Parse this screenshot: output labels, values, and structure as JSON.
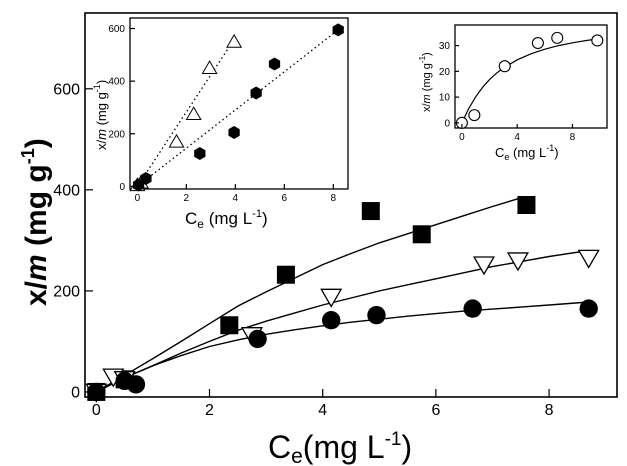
{
  "chart_data": [
    {
      "panel": "main",
      "type": "scatter",
      "xlabel": "Ce (mg L-1)",
      "xlabel_main": "C",
      "xlabel_sub": "e",
      "xlabel_unit": "(mg L",
      "xlabel_sup": "-1",
      "xlabel_close": ")",
      "ylabel": "x/m (mg g-1)",
      "ylabel_main": "x/",
      "ylabel_italic": "m",
      "ylabel_unit": " (mg g",
      "ylabel_sup": "-1",
      "ylabel_close": ")",
      "xlim": [
        -0.2,
        9.2
      ],
      "ylim": [
        -10,
        750
      ],
      "xticks": [
        "0",
        "2",
        "4",
        "6",
        "8"
      ],
      "yticks": [
        "0",
        "200",
        "400",
        "600"
      ],
      "xtick_values": [
        0,
        2,
        4,
        6,
        8
      ],
      "ytick_values": [
        0,
        200,
        400,
        600
      ],
      "grid": false,
      "series": [
        {
          "marker": "filled-square",
          "x": [
            0.0,
            0.5,
            2.35,
            3.35,
            4.85,
            5.75,
            7.6
          ],
          "y": [
            0,
            25,
            132,
            232,
            358,
            312,
            370
          ],
          "fit_x": [
            0.0,
            0.5,
            1.0,
            1.5,
            2.0,
            2.5,
            3.0,
            3.5,
            4.0,
            4.5,
            5.0,
            5.5,
            6.0,
            6.5,
            7.0,
            7.5
          ],
          "fit_y": [
            0,
            33,
            66,
            100,
            135,
            170,
            198,
            225,
            252,
            274,
            295,
            313,
            331,
            349,
            367,
            384
          ]
        },
        {
          "marker": "open-triangle-down",
          "x": [
            0.0,
            0.3,
            0.5,
            2.75,
            4.15,
            6.85,
            7.45,
            8.7
          ],
          "y": [
            0,
            30,
            25,
            112,
            188,
            252,
            260,
            265
          ],
          "fit_x": [
            0.0,
            0.5,
            1.0,
            1.5,
            2.0,
            2.5,
            3.0,
            3.5,
            4.0,
            4.5,
            5.0,
            5.5,
            6.0,
            6.5,
            7.0,
            7.5,
            8.0,
            8.7
          ],
          "fit_y": [
            0,
            28,
            52,
            77,
            100,
            122,
            140,
            156,
            172,
            186,
            200,
            212,
            224,
            236,
            248,
            258,
            268,
            280
          ]
        },
        {
          "marker": "filled-circle",
          "x": [
            0.0,
            0.5,
            0.7,
            2.85,
            4.15,
            4.95,
            6.65,
            8.7
          ],
          "y": [
            0,
            22,
            15,
            105,
            142,
            152,
            165,
            165
          ],
          "fit_x": [
            0.0,
            0.5,
            1.0,
            1.5,
            2.0,
            2.5,
            3.0,
            3.5,
            4.0,
            4.5,
            5.0,
            5.5,
            6.0,
            6.5,
            7.0,
            7.5,
            8.0,
            8.7
          ],
          "fit_y": [
            0,
            28,
            52,
            72,
            90,
            103,
            114,
            123,
            131,
            138,
            144,
            150,
            155,
            160,
            164,
            168,
            172,
            178
          ]
        }
      ]
    },
    {
      "panel": "inset-left",
      "type": "scatter",
      "xlabel": "Ce (mg L-1)",
      "xlabel_main": "C",
      "xlabel_sub": "e",
      "xlabel_unit": " (mg L",
      "xlabel_sup": "-1",
      "xlabel_close": ")",
      "ylabel": "x/m (mg g-1)",
      "ylabel_main": "x/",
      "ylabel_italic": "m",
      "ylabel_unit": " (mg g",
      "ylabel_sup": "-1",
      "ylabel_close": ")",
      "xlim": [
        -0.3,
        8.6
      ],
      "ylim": [
        -10,
        640
      ],
      "xticks": [
        "0",
        "2",
        "4",
        "6",
        "8"
      ],
      "yticks": [
        "0",
        "200",
        "400",
        "600"
      ],
      "xtick_values": [
        0,
        2,
        4,
        6,
        8
      ],
      "ytick_values": [
        0,
        200,
        400,
        600
      ],
      "grid": false,
      "series": [
        {
          "marker": "open-triangle",
          "x": [
            0.0,
            0.15,
            1.6,
            2.3,
            2.95,
            3.95
          ],
          "y": [
            5,
            15,
            170,
            275,
            450,
            550
          ],
          "fit_x": [
            0.0,
            4.0
          ],
          "fit_y": [
            0,
            565
          ],
          "fit_style": "dotted"
        },
        {
          "marker": "filled-hexagon",
          "x": [
            0.05,
            0.35,
            2.55,
            3.95,
            4.85,
            5.6,
            8.2
          ],
          "y": [
            5,
            30,
            125,
            205,
            355,
            465,
            595
          ],
          "fit_x": [
            0.0,
            8.2
          ],
          "fit_y": [
            0,
            595
          ],
          "fit_style": "dotted"
        }
      ]
    },
    {
      "panel": "inset-right",
      "type": "scatter",
      "xlabel": "Ce (mg L-1)",
      "xlabel_main": "C",
      "xlabel_sub": "e",
      "xlabel_unit": " (mg L",
      "xlabel_sup": "-1",
      "xlabel_close": ")",
      "ylabel": "x/m (mg g-1)",
      "ylabel_main": "x/",
      "ylabel_italic": "m",
      "ylabel_unit": " (mg g",
      "ylabel_sup": "-1",
      "ylabel_close": ")",
      "xlim": [
        -0.5,
        10.5
      ],
      "ylim": [
        -2,
        38
      ],
      "xticks": [
        "0",
        "4",
        "8"
      ],
      "yticks": [
        "0",
        "10",
        "20",
        "30"
      ],
      "xtick_values": [
        0,
        4,
        8
      ],
      "ytick_values": [
        0,
        10,
        20,
        30
      ],
      "grid": false,
      "series": [
        {
          "marker": "open-circle",
          "x": [
            0.0,
            0.9,
            3.1,
            5.5,
            6.9,
            9.8
          ],
          "y": [
            0,
            3,
            22,
            31,
            33,
            32
          ],
          "fit_x": [
            0.0,
            0.5,
            1.0,
            1.5,
            2.0,
            2.5,
            3.0,
            4.0,
            5.0,
            6.0,
            7.0,
            8.0,
            9.0,
            10.0
          ],
          "fit_y": [
            0,
            5.6,
            10.1,
            13.8,
            16.8,
            19.3,
            21.3,
            24.5,
            26.8,
            28.6,
            30.0,
            31.1,
            32.0,
            32.7
          ],
          "fit_style": "solid"
        }
      ]
    }
  ]
}
